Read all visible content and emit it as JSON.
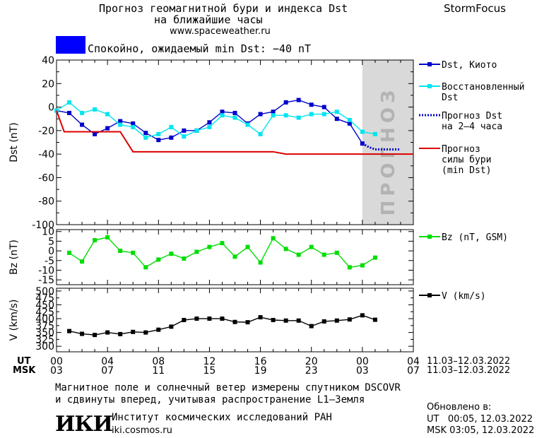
{
  "header": {
    "title_line1": "Прогноз геомагнитной бури и индекса Dst",
    "title_line2": "на ближайшие часы",
    "url": "www.spaceweather.ru",
    "brand": "StormFocus",
    "status_text": "Спокойно, ожидаемый min Dst: −40 nT",
    "status_color": "#0000ff"
  },
  "forecast_label": "ПРОГНОЗ",
  "x_axis": {
    "ut_label": "UT",
    "msk_label": "MSK",
    "ut_ticks": [
      "00",
      "04",
      "08",
      "12",
      "16",
      "20",
      "00",
      "04"
    ],
    "msk_ticks": [
      "03",
      "07",
      "11",
      "15",
      "19",
      "23",
      "03",
      "07"
    ],
    "date_range_ut": "11.03–12.03.2022",
    "date_range_msk": "11.03–12.03.2022"
  },
  "footer": {
    "note_line1": "Магнитное поле и солнечный ветер измерены спутником DSCOVR",
    "note_line2": "и сдвинуты вперед, учитывая распространение L1–Земля",
    "institute": "Институт космических исследований РАН",
    "site": "iki.cosmos.ru",
    "logo": "ИКИ",
    "updated_label": "Обновлено в:",
    "updated_ut": "UT   00:05, 12.03.2022",
    "updated_msk": "MSK 03:05, 12.03.2022"
  },
  "chart_data": [
    {
      "type": "line",
      "ylabel": "Dst (nT)",
      "ylim": [
        -100,
        40
      ],
      "yticks": [
        40,
        20,
        0,
        -20,
        -40,
        -60,
        -80,
        -100
      ],
      "xlim": [
        0,
        28
      ],
      "forecast_region": [
        24,
        28
      ],
      "series": [
        {
          "name": "Dst, Киото",
          "color": "#0000cc",
          "marker": "square",
          "x": [
            0,
            1,
            2,
            3,
            4,
            5,
            6,
            7,
            8,
            9,
            10,
            11,
            12,
            13,
            14,
            15,
            16,
            17,
            18,
            19,
            20,
            21,
            22,
            23,
            24
          ],
          "y": [
            -3,
            -5,
            -15,
            -23,
            -18,
            -12,
            -14,
            -22,
            -28,
            -26,
            -20,
            -20,
            -13,
            -4,
            -5,
            -14,
            -6,
            -4,
            4,
            6,
            2,
            0,
            -10,
            -14,
            -31
          ]
        },
        {
          "name": "Восстановленный Dst",
          "color": "#00e5ee",
          "marker": "square",
          "x": [
            0,
            1,
            2,
            3,
            4,
            5,
            6,
            7,
            8,
            9,
            10,
            11,
            12,
            13,
            14,
            15,
            16,
            17,
            18,
            19,
            20,
            21,
            22,
            23,
            24,
            25
          ],
          "y": [
            -3,
            4,
            -5,
            -2,
            -6,
            -15,
            -17,
            -26,
            -23,
            -17,
            -25,
            -20,
            -17,
            -7,
            -9,
            -15,
            -23,
            -7,
            -7,
            -9,
            -6,
            -6,
            -4,
            -11,
            -21,
            -23
          ]
        },
        {
          "name": "Прогноз Dst на 2–4 часа",
          "color": "#0000cc",
          "style": "dotted",
          "x": [
            24,
            24.5,
            25,
            25.5,
            26,
            26.5,
            27
          ],
          "y": [
            -31,
            -34,
            -36,
            -36,
            -36,
            -36,
            -36
          ]
        },
        {
          "name": "Прогноз силы бури (min Dst)",
          "color": "#dd0000",
          "style": "solid",
          "x": [
            0,
            0.6,
            5,
            6,
            11,
            17,
            18,
            28
          ],
          "y": [
            -3,
            -21,
            -21,
            -38,
            -38,
            -38,
            -40,
            -40
          ]
        }
      ]
    },
    {
      "type": "line",
      "ylabel": "Bz (nT)",
      "ylim": [
        -17.5,
        11
      ],
      "yticks": [
        10,
        5,
        0,
        -5,
        -10,
        -15
      ],
      "xlim": [
        0,
        28
      ],
      "series": [
        {
          "name": "Bz (nT, GSM)",
          "color": "#00dd00",
          "marker": "square",
          "x": [
            1,
            2,
            3,
            4,
            5,
            6,
            7,
            8,
            9,
            10,
            11,
            12,
            13,
            14,
            15,
            16,
            17,
            18,
            19,
            20,
            21,
            22,
            23,
            24,
            25
          ],
          "y": [
            -1,
            -5.5,
            5.5,
            7,
            0,
            -1,
            -8.5,
            -4.5,
            -1.5,
            -4,
            -0.5,
            2,
            4,
            -3,
            2,
            -6,
            6.5,
            1,
            -2,
            2,
            -2,
            -1,
            -8.5,
            -7.5,
            -3.5
          ]
        }
      ]
    },
    {
      "type": "line",
      "ylabel": "V (km/s)",
      "ylim": [
        280,
        510
      ],
      "yticks": [
        500,
        450,
        400,
        350,
        300
      ],
      "ylabels_extra": [
        475,
        425,
        375,
        325,
        275
      ],
      "xlim": [
        0,
        28
      ],
      "series": [
        {
          "name": "V (km/s)",
          "color": "#000000",
          "marker": "square",
          "x": [
            1,
            2,
            3,
            4,
            5,
            6,
            7,
            8,
            9,
            10,
            11,
            12,
            13,
            14,
            15,
            16,
            17,
            18,
            19,
            20,
            21,
            22,
            23,
            24,
            25
          ],
          "y": [
            355,
            345,
            341,
            350,
            344,
            352,
            350,
            360,
            371,
            395,
            400,
            400,
            400,
            388,
            387,
            405,
            395,
            393,
            393,
            373,
            390,
            393,
            397,
            412,
            396
          ]
        }
      ]
    }
  ]
}
